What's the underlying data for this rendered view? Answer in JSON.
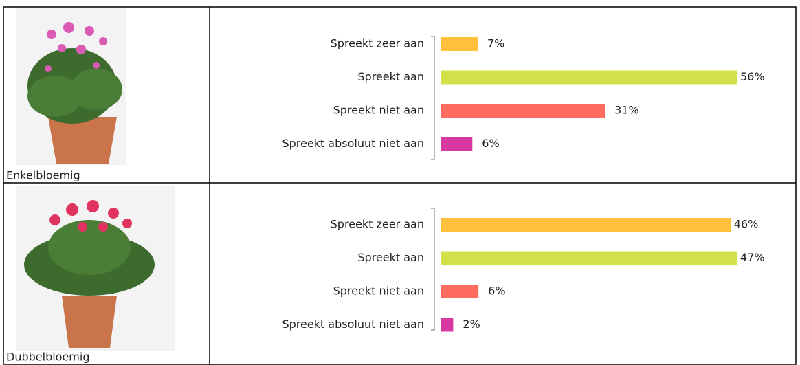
{
  "chart_data": [
    {
      "type": "bar",
      "title": "Enkelbloemig",
      "categories": [
        "Spreekt zeer aan",
        "Spreekt aan",
        "Spreekt niet aan",
        "Spreekt absoluut niet aan"
      ],
      "values": [
        7,
        56,
        31,
        6
      ],
      "value_labels": [
        "7%",
        "56%",
        "31%",
        "6%"
      ],
      "colors": [
        "#ffc13b",
        "#d4e04a",
        "#ff6b5e",
        "#d63aa0"
      ]
    },
    {
      "type": "bar",
      "title": "Dubbelbloemig",
      "categories": [
        "Spreekt zeer aan",
        "Spreekt aan",
        "Spreekt niet aan",
        "Spreekt absoluut niet aan"
      ],
      "values": [
        46,
        47,
        6,
        2
      ],
      "value_labels": [
        "46%",
        "47%",
        "6%",
        "2%"
      ],
      "colors": [
        "#ffc13b",
        "#d4e04a",
        "#ff6b5e",
        "#d63aa0"
      ]
    }
  ]
}
